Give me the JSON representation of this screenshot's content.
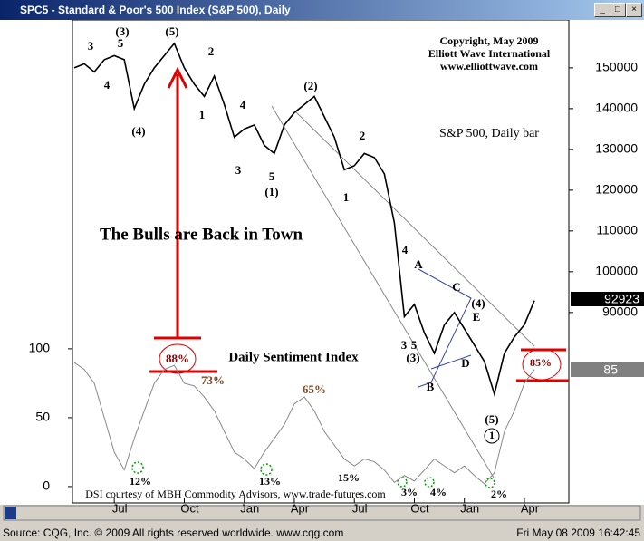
{
  "window": {
    "title": "SPC5 - Standard & Poor's 500 Index (S&P 500), Daily",
    "status_left": "Source: CQG, Inc. © 2009 All rights reserved worldwide. www.cqg.com",
    "status_right": "Fri May 08 2009 16:42:45"
  },
  "chart_data": [
    {
      "type": "line",
      "name": "S&P 500, Daily bar",
      "color": "#000000",
      "categories": [
        null,
        null,
        null,
        null,
        "Jul",
        null,
        null,
        null,
        null,
        null,
        null,
        "Oct",
        null,
        null,
        null,
        null,
        null,
        "Jan",
        null,
        null,
        null,
        null,
        "Apr",
        null,
        null,
        null,
        null,
        null,
        "Jul",
        null,
        null,
        null,
        null,
        null,
        "Oct",
        null,
        null,
        null,
        null,
        "Jan",
        null,
        null,
        null,
        null,
        null,
        "Apr",
        null
      ],
      "values": [
        150000,
        151000,
        149000,
        152000,
        153000,
        152000,
        140000,
        146000,
        150000,
        153000,
        156000,
        150000,
        146000,
        143000,
        148000,
        141000,
        133000,
        135000,
        136000,
        131000,
        129000,
        136000,
        139000,
        141000,
        143000,
        138000,
        133000,
        125000,
        126000,
        129000,
        128000,
        124000,
        112000,
        89000,
        92000,
        85000,
        80000,
        87000,
        90000,
        86000,
        82000,
        78000,
        70000,
        80000,
        84000,
        87000,
        92923
      ],
      "ylim": [
        44400,
        162200
      ],
      "yticks": [
        90000,
        100000,
        110000,
        120000,
        130000,
        140000,
        150000
      ],
      "annotations": [
        "Copyright, May 2009",
        "Elliott Wave International",
        "www.elliottwave.com",
        "The Bulls are Back in Town",
        "3",
        "(3)",
        "5",
        "4",
        "(5)",
        "(4)",
        "2",
        "1",
        "4",
        "3",
        "5",
        "(1)",
        "(2)",
        "2",
        "1",
        "4",
        "A",
        "3",
        "5",
        "(3)",
        "B",
        "C",
        "(4)",
        "E",
        "D",
        "(5)",
        "1"
      ]
    },
    {
      "type": "line",
      "name": "Daily Sentiment Index",
      "color": "#8a8a8a",
      "values": [
        90,
        85,
        75,
        50,
        25,
        12,
        35,
        55,
        75,
        85,
        88,
        75,
        73,
        65,
        55,
        40,
        25,
        20,
        13,
        25,
        35,
        45,
        60,
        65,
        55,
        40,
        30,
        20,
        15,
        20,
        18,
        12,
        3,
        8,
        4,
        12,
        20,
        15,
        10,
        15,
        8,
        2,
        10,
        40,
        55,
        75,
        85
      ],
      "ylim": [
        -8.6,
        340
      ],
      "yticks": [
        0,
        50,
        100
      ],
      "annotations": [
        "88%",
        "73%",
        "65%",
        "12%",
        "13%",
        "15%",
        "3%",
        "4%",
        "2%",
        "85%",
        "DSI courtesy of MBH Commodity Advisors, www.trade-futures.com"
      ]
    }
  ]
}
